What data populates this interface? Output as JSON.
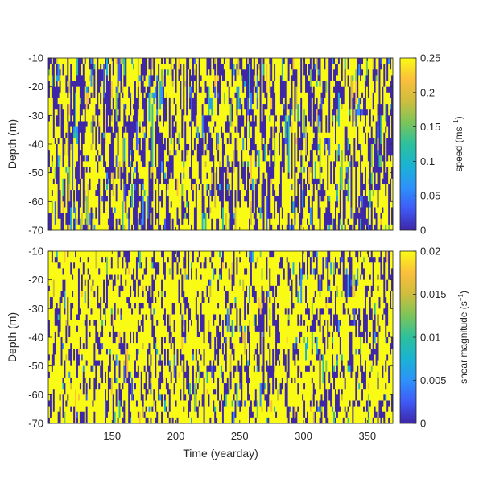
{
  "chart_data": [
    {
      "type": "heatmap",
      "title": "",
      "xlabel": "",
      "ylabel": "Depth (m)",
      "xlim": [
        100,
        370
      ],
      "ylim": [
        -70,
        -10
      ],
      "x_ticks": [],
      "y_ticks": [
        -10,
        -20,
        -30,
        -40,
        -50,
        -60,
        -70
      ],
      "colorbar": {
        "label_text": "speed (ms",
        "label_sup": "−1",
        "label_close": ")",
        "range": [
          0,
          0.25
        ],
        "ticks": [
          "0.25",
          "0.2",
          "0.15",
          "0.1",
          "0.05",
          "0"
        ]
      },
      "colormap": [
        "#3e26a8",
        "#3f5af5",
        "#2d92fb",
        "#1ab3d3",
        "#2dc09d",
        "#7bc55a",
        "#cfbd3e",
        "#fbbf3c",
        "#f9fb15"
      ],
      "pattern": {
        "yellow_fraction": 0.5,
        "blue_fraction": 0.38,
        "column_persistence": 0.55
      }
    },
    {
      "type": "heatmap",
      "title": "",
      "xlabel": "Time (yearday)",
      "ylabel": "Depth (m)",
      "xlim": [
        100,
        370
      ],
      "ylim": [
        -70,
        -10
      ],
      "x_ticks": [
        "150",
        "200",
        "250",
        "300",
        "350"
      ],
      "y_ticks": [
        -10,
        -20,
        -30,
        -40,
        -50,
        -60,
        -70
      ],
      "colorbar": {
        "label_text": "shear magnitude (s",
        "label_sup": "−1",
        "label_close": ")",
        "range": [
          0,
          0.02
        ],
        "ticks": [
          "0.02",
          "0.015",
          "0.01",
          "0.005",
          "0"
        ]
      },
      "colormap": [
        "#3e26a8",
        "#3f5af5",
        "#2d92fb",
        "#1ab3d3",
        "#2dc09d",
        "#7bc55a",
        "#cfbd3e",
        "#fbbf3c",
        "#f9fb15"
      ],
      "pattern": {
        "yellow_fraction": 0.68,
        "blue_fraction": 0.26,
        "column_persistence": 0.4
      }
    }
  ]
}
